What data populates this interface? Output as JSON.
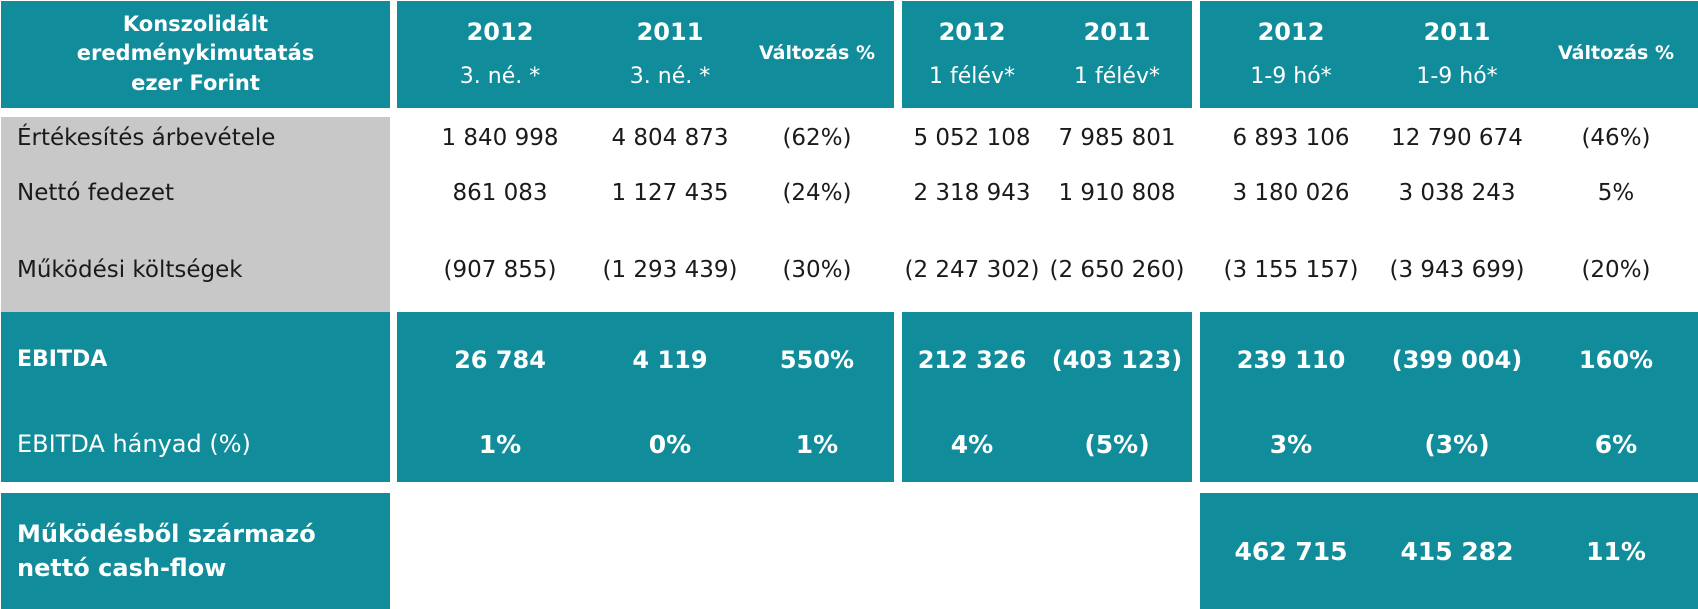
{
  "header": {
    "title_lines": [
      "Konszolidált",
      "eredménykimutatás",
      "ezer Forint"
    ],
    "groups": [
      {
        "columns": [
          {
            "year": "2012",
            "period": "3. né. *"
          },
          {
            "year": "2011",
            "period": "3. né. *"
          },
          {
            "label": "Változás %"
          }
        ]
      },
      {
        "columns": [
          {
            "year": "2012",
            "period": "1 félév*"
          },
          {
            "year": "2011",
            "period": "1 félév*"
          }
        ]
      },
      {
        "columns": [
          {
            "year": "2012",
            "period": "1-9 hó*"
          },
          {
            "year": "2011",
            "period": "1-9 hó*"
          },
          {
            "label": "Változás %"
          }
        ]
      }
    ]
  },
  "rows": [
    {
      "label": "Értékesítés árbevétele",
      "values": [
        "1 840 998",
        "4 804 873",
        "(62%)",
        "5 052 108",
        "7 985 801",
        "6 893 106",
        "12 790 674",
        "(46%)"
      ]
    },
    {
      "label": "Nettó fedezet",
      "values": [
        "861 083",
        "1 127 435",
        "(24%)",
        "2 318 943",
        "1 910 808",
        "3 180 026",
        "3 038 243",
        "5%"
      ]
    },
    {
      "label": "Működési költségek",
      "values": [
        "(907 855)",
        "(1 293 439)",
        "(30%)",
        "(2 247 302)",
        "(2 650 260)",
        "(3 155 157)",
        "(3 943 699)",
        "(20%)"
      ]
    }
  ],
  "ebitda": {
    "label": "EBITDA",
    "values": [
      "26 784",
      "4 119",
      "550%",
      "212 326",
      "(403 123)",
      "239 110",
      "(399 004)",
      "160%"
    ]
  },
  "ebitda_ratio": {
    "label": "EBITDA hányad (%)",
    "values": [
      "1%",
      "0%",
      "1%",
      "4%",
      "(5%)",
      "3%",
      "(3%)",
      "6%"
    ]
  },
  "cashflow": {
    "label_lines": [
      "Működésből származó",
      "nettó cash-flow"
    ],
    "values": [
      "462 715",
      "415 282",
      "11%"
    ]
  },
  "colors": {
    "teal": "#118c9a",
    "grey": "#c8c8c8",
    "text_dark": "#1a1a1a",
    "white": "#ffffff"
  }
}
